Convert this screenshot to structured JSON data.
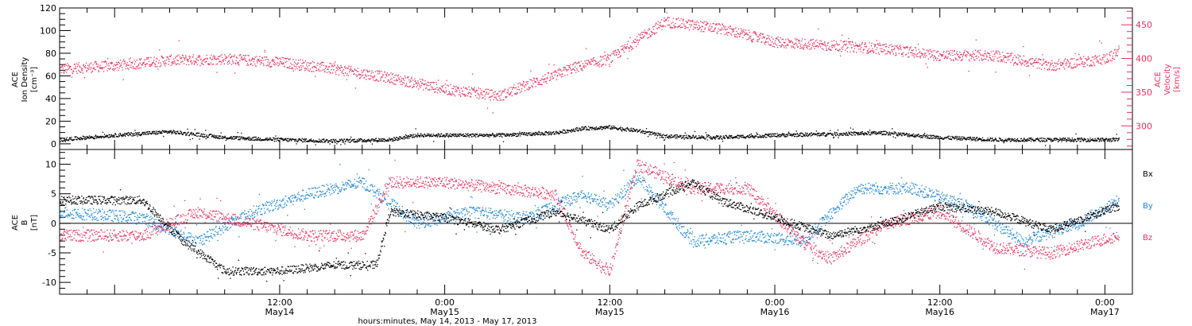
{
  "colors": {
    "black": "#000000",
    "pink": "#e8325e",
    "blue": "#1f86d6"
  },
  "xaxis": {
    "label": "hours:minutes, May 14, 2013 - May 17, 2013",
    "start": "2013-05-13T20:00",
    "end": "2013-05-17T02:00",
    "ticks": [
      {
        "time": "2013-05-14T12:00",
        "top": "12:00",
        "bottom": "May14"
      },
      {
        "time": "2013-05-15T00:00",
        "top": "0:00",
        "bottom": "May15"
      },
      {
        "time": "2013-05-15T12:00",
        "top": "12:00",
        "bottom": "May15"
      },
      {
        "time": "2013-05-16T00:00",
        "top": "0:00",
        "bottom": "May16"
      },
      {
        "time": "2013-05-16T12:00",
        "top": "12:00",
        "bottom": "May16"
      },
      {
        "time": "2013-05-17T00:00",
        "top": "0:00",
        "bottom": "May17"
      }
    ]
  },
  "chart_data": [
    {
      "type": "scatter",
      "panel": "top",
      "ylabel_left": [
        "ACE",
        "Ion Density",
        "[cm⁻³]"
      ],
      "ylabel_right": [
        "ACE",
        "Velocity",
        "[km/s]"
      ],
      "ylim_left": [
        -5,
        120
      ],
      "yticks_left": [
        0,
        20,
        40,
        60,
        80,
        100,
        120
      ],
      "ylim_right": [
        265,
        475
      ],
      "yticks_right": [
        300,
        350,
        400,
        450
      ],
      "series": [
        {
          "axis": "left",
          "color": "#000000",
          "times": [
            "2013-05-13T20:00",
            "2013-05-14T00:00",
            "2013-05-14T04:00",
            "2013-05-14T08:00",
            "2013-05-14T12:00",
            "2013-05-14T16:00",
            "2013-05-14T20:00",
            "2013-05-14T22:00",
            "2013-05-15T00:00",
            "2013-05-15T04:00",
            "2013-05-15T08:00",
            "2013-05-15T10:00",
            "2013-05-15T12:00",
            "2013-05-15T14:00",
            "2013-05-15T16:00",
            "2013-05-15T20:00",
            "2013-05-16T00:00",
            "2013-05-16T04:00",
            "2013-05-16T08:00",
            "2013-05-16T12:00",
            "2013-05-16T16:00",
            "2013-05-16T20:00",
            "2013-05-17T00:00",
            "2013-05-17T01:00"
          ],
          "values": [
            4,
            8,
            11,
            6,
            4,
            3,
            4,
            8,
            8,
            8,
            10,
            14,
            15,
            12,
            7,
            6,
            8,
            9,
            10,
            6,
            4,
            4,
            4,
            4
          ]
        },
        {
          "axis": "right",
          "color": "#e8325e",
          "times": [
            "2013-05-13T20:00",
            "2013-05-14T00:00",
            "2013-05-14T04:00",
            "2013-05-14T08:00",
            "2013-05-14T12:00",
            "2013-05-14T16:00",
            "2013-05-14T20:00",
            "2013-05-15T00:00",
            "2013-05-15T04:00",
            "2013-05-15T06:00",
            "2013-05-15T08:00",
            "2013-05-15T09:00",
            "2013-05-15T12:00",
            "2013-05-15T14:00",
            "2013-05-15T16:00",
            "2013-05-15T18:00",
            "2013-05-15T20:00",
            "2013-05-16T00:00",
            "2013-05-16T04:00",
            "2013-05-16T08:00",
            "2013-05-16T12:00",
            "2013-05-16T16:00",
            "2013-05-16T20:00",
            "2013-05-17T00:00",
            "2013-05-17T01:00"
          ],
          "values": [
            385,
            390,
            398,
            400,
            395,
            385,
            372,
            355,
            345,
            362,
            375,
            385,
            400,
            428,
            455,
            450,
            445,
            425,
            420,
            415,
            405,
            405,
            390,
            400,
            410
          ]
        }
      ]
    },
    {
      "type": "scatter",
      "panel": "bottom",
      "ylabel_left": [
        "ACE",
        "B",
        "[nT]"
      ],
      "ylim": [
        -12,
        12.5
      ],
      "yticks": [
        -10,
        -5,
        0,
        5,
        10
      ],
      "zero_line": true,
      "legend": [
        "Bx",
        "By",
        "Bz"
      ],
      "legend_position": "right",
      "series": [
        {
          "name": "Bx",
          "color": "#000000",
          "times": [
            "2013-05-13T20:00",
            "2013-05-14T02:00",
            "2013-05-14T05:00",
            "2013-05-14T08:00",
            "2013-05-14T12:00",
            "2013-05-14T16:00",
            "2013-05-14T19:00",
            "2013-05-14T20:00",
            "2013-05-15T00:00",
            "2013-05-15T04:00",
            "2013-05-15T08:00",
            "2013-05-15T12:00",
            "2013-05-15T14:00",
            "2013-05-15T18:00",
            "2013-05-15T20:00",
            "2013-05-16T00:00",
            "2013-05-16T04:00",
            "2013-05-16T08:00",
            "2013-05-16T12:00",
            "2013-05-16T16:00",
            "2013-05-16T20:00",
            "2013-05-17T01:00"
          ],
          "values": [
            4,
            4,
            -3,
            -8,
            -8,
            -7,
            -7,
            2,
            1,
            -1,
            2,
            -1,
            3,
            7,
            4,
            1,
            -2,
            0,
            3,
            2,
            -1,
            3
          ]
        },
        {
          "name": "By",
          "color": "#1f86d6",
          "times": [
            "2013-05-13T20:00",
            "2013-05-14T02:00",
            "2013-05-14T06:00",
            "2013-05-14T10:00",
            "2013-05-14T14:00",
            "2013-05-14T18:00",
            "2013-05-14T22:00",
            "2013-05-15T02:00",
            "2013-05-15T06:00",
            "2013-05-15T10:00",
            "2013-05-15T12:00",
            "2013-05-15T14:00",
            "2013-05-15T18:00",
            "2013-05-15T22:00",
            "2013-05-16T02:00",
            "2013-05-16T06:00",
            "2013-05-16T10:00",
            "2013-05-16T14:00",
            "2013-05-16T18:00",
            "2013-05-16T22:00",
            "2013-05-17T01:00"
          ],
          "values": [
            2,
            1,
            -3,
            2,
            5,
            7,
            0,
            2,
            1,
            5,
            3,
            8,
            -3,
            -2,
            -3,
            6,
            6,
            3,
            -3,
            0,
            4
          ]
        },
        {
          "name": "Bz",
          "color": "#e8325e",
          "times": [
            "2013-05-13T20:00",
            "2013-05-14T02:00",
            "2013-05-14T06:00",
            "2013-05-14T10:00",
            "2013-05-14T14:00",
            "2013-05-14T18:00",
            "2013-05-14T20:00",
            "2013-05-15T00:00",
            "2013-05-15T04:00",
            "2013-05-15T08:00",
            "2013-05-15T10:00",
            "2013-05-15T12:00",
            "2013-05-15T14:00",
            "2013-05-15T18:00",
            "2013-05-15T22:00",
            "2013-05-16T02:00",
            "2013-05-16T04:00",
            "2013-05-16T08:00",
            "2013-05-16T12:00",
            "2013-05-16T16:00",
            "2013-05-16T20:00",
            "2013-05-17T01:00"
          ],
          "values": [
            -2,
            -2,
            2,
            0,
            -2,
            -2,
            7,
            7,
            6,
            5,
            -5,
            -8,
            10,
            6,
            6,
            -3,
            -6,
            0,
            2,
            -4,
            -5,
            -2
          ]
        }
      ]
    }
  ]
}
